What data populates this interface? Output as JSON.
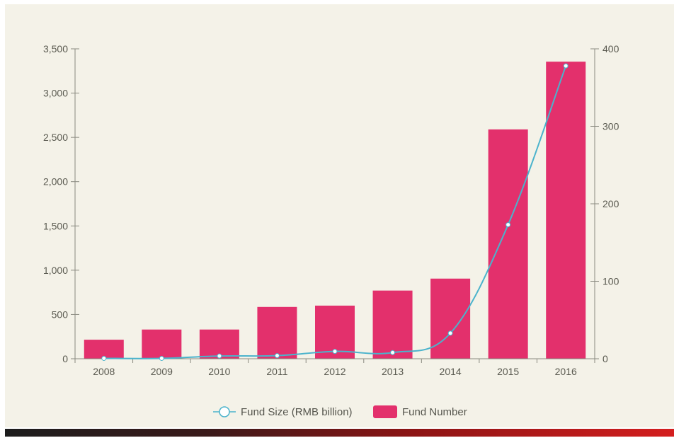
{
  "chart_data": {
    "type": "bar",
    "categories": [
      "2008",
      "2009",
      "2010",
      "2011",
      "2012",
      "2013",
      "2014",
      "2015",
      "2016"
    ],
    "series": [
      {
        "name": "Fund Number",
        "type": "bar",
        "axis": "left",
        "color": "#e3306c",
        "values": [
          215,
          330,
          330,
          585,
          600,
          770,
          905,
          2590,
          3355
        ]
      },
      {
        "name": "Fund Size (RMB billion)",
        "type": "line",
        "axis": "right",
        "color": "#4bb3cc",
        "values": [
          0.5,
          0.5,
          3.5,
          4,
          9.5,
          8,
          33,
          173,
          378
        ]
      }
    ],
    "y_left": {
      "lim": [
        0,
        3500
      ],
      "ticks": [
        0,
        500,
        1000,
        1500,
        2000,
        2500,
        3000,
        3500
      ],
      "tick_labels": [
        "0",
        "500",
        "1,000",
        "1,500",
        "2,000",
        "2,500",
        "3,000",
        "3,500"
      ]
    },
    "y_right": {
      "lim": [
        0,
        400
      ],
      "ticks": [
        0,
        100,
        200,
        300,
        400
      ],
      "tick_labels": [
        "0",
        "100",
        "200",
        "300",
        "400"
      ]
    },
    "legend": {
      "position": "bottom-center",
      "items": [
        {
          "label": "Fund Size (RMB billion)",
          "marker": "line-circle",
          "color": "#4bb3cc"
        },
        {
          "label": "Fund Number",
          "marker": "rect",
          "color": "#e3306c"
        }
      ]
    },
    "grid": false
  }
}
